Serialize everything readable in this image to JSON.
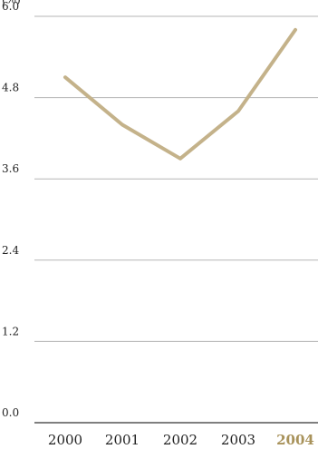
{
  "chart_data": {
    "type": "line",
    "title": "",
    "unit_label": "(%)",
    "xlabel": "",
    "ylabel": "",
    "categories": [
      "2000",
      "2001",
      "2002",
      "2003",
      "2004"
    ],
    "highlight_category": "2004",
    "series": [
      {
        "values": [
          5.1,
          4.4,
          3.9,
          4.6,
          5.8
        ]
      }
    ],
    "y_ticks": [
      "0.0",
      "1.2",
      "2.4",
      "3.6",
      "4.8",
      "6.0"
    ],
    "ylim": [
      0,
      6
    ],
    "grid": true,
    "colors": {
      "line": "#c4b28a",
      "grid": "#b5b5b5",
      "axis": "#555555",
      "tick_text": "#222222",
      "highlight_text": "#a8925a"
    }
  }
}
